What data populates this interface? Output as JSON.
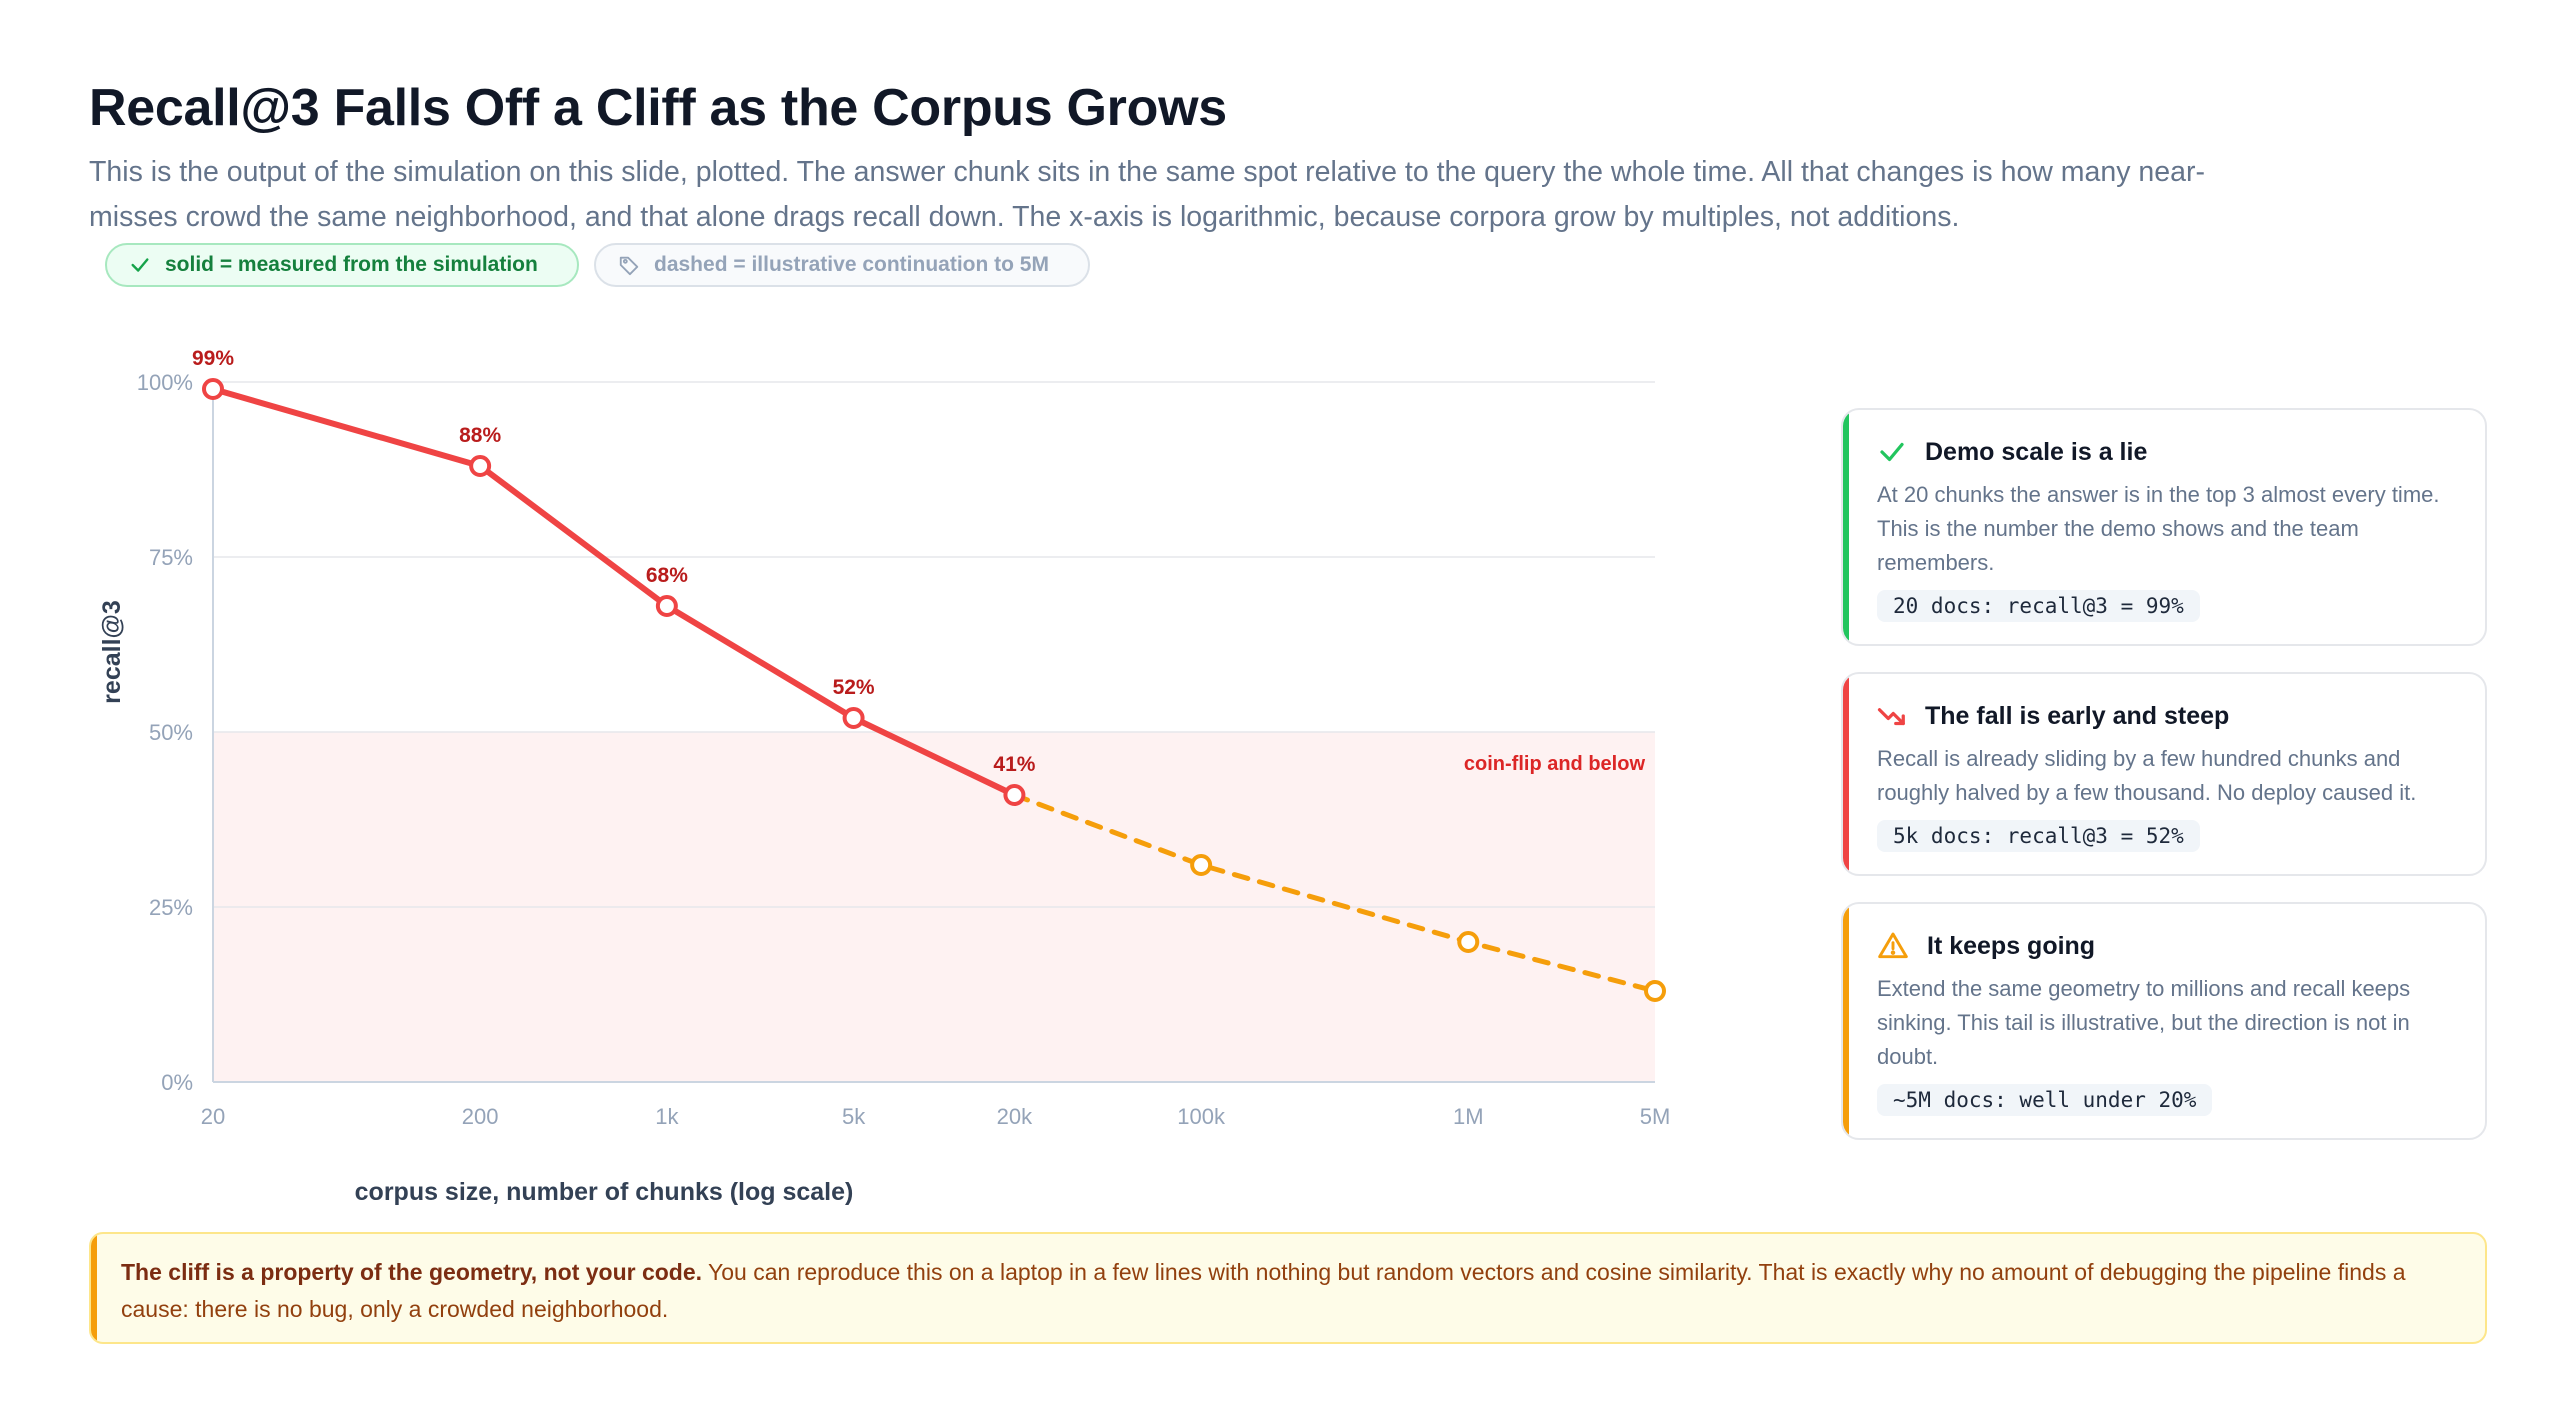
{
  "header": {
    "title": "Recall@3 Falls Off a Cliff as the Corpus Grows",
    "subtitle": "This is the output of the simulation on this slide, plotted. The answer chunk sits in the same spot relative to the query the whole time. All that changes is how many near-misses crowd the same neighborhood, and that alone drags recall down. The x-axis is logarithmic, because corpora grow by multiples, not additions."
  },
  "legend_pills": {
    "solid": "solid = measured from the simulation",
    "dashed": "dashed = illustrative continuation to 5M"
  },
  "chart_data": {
    "type": "line",
    "xlabel": "corpus size, number of chunks (log scale)",
    "ylabel": "recall@3",
    "x_scale": "log",
    "xlim": [
      20,
      5000000
    ],
    "ylim": [
      0,
      100
    ],
    "grid": true,
    "x_ticks": [
      {
        "value": 20,
        "label": "20"
      },
      {
        "value": 200,
        "label": "200"
      },
      {
        "value": 1000,
        "label": "1k"
      },
      {
        "value": 5000,
        "label": "5k"
      },
      {
        "value": 20000,
        "label": "20k"
      },
      {
        "value": 100000,
        "label": "100k"
      },
      {
        "value": 1000000,
        "label": "1M"
      },
      {
        "value": 5000000,
        "label": "5M"
      }
    ],
    "y_ticks": [
      {
        "value": 0,
        "label": "0%"
      },
      {
        "value": 25,
        "label": "25%"
      },
      {
        "value": 50,
        "label": "50%"
      },
      {
        "value": 75,
        "label": "75%"
      },
      {
        "value": 100,
        "label": "100%"
      }
    ],
    "series": [
      {
        "style": "solid",
        "color": "#ef4444",
        "points": [
          {
            "x": 20,
            "y": 99,
            "label": "99%"
          },
          {
            "x": 200,
            "y": 88,
            "label": "88%"
          },
          {
            "x": 1000,
            "y": 68,
            "label": "68%"
          },
          {
            "x": 5000,
            "y": 52,
            "label": "52%"
          },
          {
            "x": 20000,
            "y": 41,
            "label": "41%"
          }
        ]
      },
      {
        "style": "dashed",
        "color": "#f59e0b",
        "points": [
          {
            "x": 20000,
            "y": 41
          },
          {
            "x": 100000,
            "y": 31
          },
          {
            "x": 1000000,
            "y": 20
          },
          {
            "x": 5000000,
            "y": 13
          }
        ]
      }
    ],
    "band": {
      "from": 0,
      "to": 50,
      "label": "coin-flip and below",
      "color": "#fef2f2"
    }
  },
  "cards": [
    {
      "icon": "check-icon",
      "accent": "#22c55e",
      "title": "Demo scale is a lie",
      "body": "At 20 chunks the answer is in the top 3 almost every time. This is the number the demo shows and the team remembers.",
      "code": "20 docs: recall@3 = 99%"
    },
    {
      "icon": "trending-down-icon",
      "accent": "#ef4444",
      "title": "The fall is early and steep",
      "body": "Recall is already sliding by a few hundred chunks and roughly halved by a few thousand. No deploy caused it.",
      "code": "5k docs: recall@3 = 52%"
    },
    {
      "icon": "warning-icon",
      "accent": "#f59e0b",
      "title": "It keeps going",
      "body": "Extend the same geometry to millions and recall keeps sinking. This tail is illustrative, but the direction is not in doubt.",
      "code": "~5M docs: well under 20%"
    }
  ],
  "note": {
    "bold": "The cliff is a property of the geometry, not your code.",
    "text": " You can reproduce this on a laptop in a few lines with nothing but random vectors and cosine similarity. That is exactly why no amount of debugging the pipeline finds a cause: there is no bug, only a crowded neighborhood."
  }
}
